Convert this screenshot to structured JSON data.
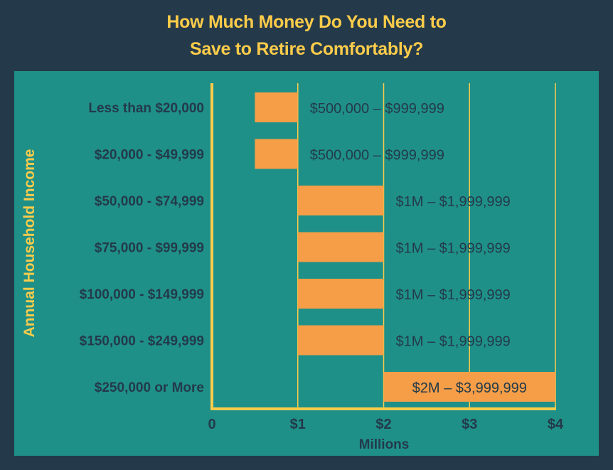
{
  "chart_data": {
    "type": "bar",
    "orientation": "horizontal-range",
    "title": "How Much Money Do You Need to Save to Retire Comfortably?",
    "title_lines": [
      "How Much Money Do You Need to",
      "Save to Retire Comfortably?"
    ],
    "xlabel": "Millions",
    "ylabel": "Annual Household Income",
    "xlim": [
      0,
      4
    ],
    "xticks": [
      "0",
      "$1",
      "$2",
      "$3",
      "$4"
    ],
    "grid": "vertical",
    "categories": [
      "Less than $20,000",
      "$20,000 - $49,999",
      "$50,000 - $74,999",
      "$75,000 - $99,999",
      "$100,000 - $149,999",
      "$150,000 - $249,999",
      "$250,000 or More"
    ],
    "ranges": [
      [
        0.5,
        1
      ],
      [
        0.5,
        1
      ],
      [
        1,
        2
      ],
      [
        1,
        2
      ],
      [
        1,
        2
      ],
      [
        1,
        2
      ],
      [
        2,
        4
      ]
    ],
    "data_labels": [
      "$500,000 – $999,999",
      "$500,000 – $999,999",
      "$1M – $1,999,999",
      "$1M – $1,999,999",
      "$1M – $1,999,999",
      "$1M – $1,999,999",
      "$2M – $3,999,999"
    ],
    "colors": {
      "background": "#243a4a",
      "panel": "#1f9088",
      "bar": "#f59e47",
      "axis": "#fdcc4a",
      "text": "#233a4a",
      "title": "#fdcc4a"
    }
  }
}
